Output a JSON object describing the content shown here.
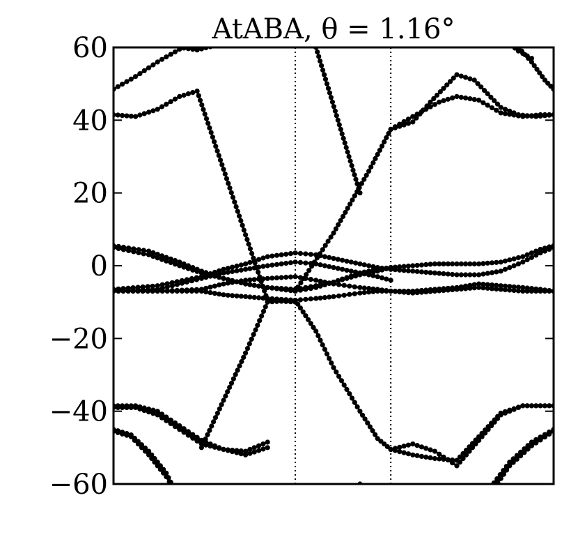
{
  "chart_data": {
    "type": "line",
    "title": "AtABA, θ = 1.16°",
    "xlabel": "",
    "ylabel": "",
    "xlim": [
      0,
      1
    ],
    "ylim": [
      -60,
      60
    ],
    "yticks": [
      -60,
      -40,
      -20,
      0,
      20,
      40,
      60
    ],
    "ytick_labels": [
      "−60",
      "−40",
      "−20",
      "0",
      "20",
      "40",
      "60"
    ],
    "vlines_dotted": [
      0,
      0.413,
      0.63,
      1
    ],
    "grid": false,
    "legend": "none",
    "marker": "dot",
    "line_color": "#000000",
    "series": [
      {
        "x": [
          0,
          0.05,
          0.1,
          0.15,
          0.2,
          0.25,
          0.3
        ],
        "y": [
          48.5,
          52,
          56,
          59.5,
          63,
          66,
          70
        ]
      },
      {
        "x": [
          0,
          0.05,
          0.1,
          0.15,
          0.19,
          0.25,
          0.3,
          0.35,
          0.413
        ],
        "y": [
          41.5,
          41,
          43,
          46.5,
          48,
          26.5,
          8.5,
          -9.5,
          -10
        ]
      },
      {
        "x": [
          0.15,
          0.19,
          0.23
        ],
        "y": [
          60,
          59.3,
          60.5
        ]
      },
      {
        "x": [
          0.413,
          0.5,
          0.58,
          0.63,
          0.68,
          0.72,
          0.78,
          0.82,
          0.88,
          0.92,
          0.96,
          1.0
        ],
        "y": [
          -7,
          9,
          26,
          37.5,
          39.5,
          45,
          52.5,
          51,
          43.5,
          41.5,
          41,
          41.5
        ]
      },
      {
        "x": [
          0.63,
          0.68,
          0.74,
          0.78,
          0.83,
          0.88,
          0.93,
          0.97,
          1.0
        ],
        "y": [
          37.5,
          41,
          45,
          46.5,
          45.5,
          42,
          41,
          41.5,
          41.5
        ]
      },
      {
        "x": [
          0.3,
          0.35,
          0.413,
          0.46,
          0.51,
          0.56
        ],
        "y": [
          70,
          66,
          64,
          60,
          40,
          20
        ]
      },
      {
        "x": [
          0.92,
          0.95,
          0.98,
          1.0
        ],
        "y": [
          60,
          56,
          51,
          48.5
        ]
      },
      {
        "x": [
          0.88,
          0.92,
          0.95
        ],
        "y": [
          63,
          59,
          57
        ]
      },
      {
        "x": [
          0,
          0.08,
          0.15,
          0.2,
          0.25,
          0.3,
          0.35,
          0.413,
          0.46,
          0.5,
          0.56,
          0.6,
          0.63
        ],
        "y": [
          5.5,
          4,
          1,
          -1.5,
          -3.5,
          -5,
          -6,
          -6.5,
          -5.5,
          -4.5,
          -2.5,
          -1.5,
          -0.5
        ]
      },
      {
        "x": [
          0,
          0.08,
          0.15,
          0.2,
          0.25,
          0.3,
          0.35,
          0.413,
          0.46,
          0.5,
          0.56,
          0.6,
          0.63
        ],
        "y": [
          5,
          3,
          0,
          -2,
          -3.5,
          -5,
          -6,
          -7,
          -6,
          -4.5,
          -2,
          -1,
          -0.5
        ]
      },
      {
        "x": [
          0,
          0.1,
          0.2,
          0.25,
          0.3,
          0.35,
          0.413,
          0.46,
          0.5,
          0.56,
          0.6,
          0.63
        ],
        "y": [
          -6.5,
          -5.5,
          -3,
          -1,
          0.5,
          2.5,
          3.5,
          3,
          2,
          0.5,
          -0.5,
          -1
        ]
      },
      {
        "x": [
          0,
          0.1,
          0.2,
          0.25,
          0.3,
          0.35,
          0.413,
          0.46,
          0.5,
          0.56,
          0.6,
          0.63
        ],
        "y": [
          -7,
          -6.5,
          -3.5,
          -2,
          -1,
          0,
          1,
          0.5,
          -0.5,
          -2,
          -3,
          -4
        ]
      },
      {
        "x": [
          0,
          0.1,
          0.2,
          0.25,
          0.3,
          0.35,
          0.413,
          0.46,
          0.5,
          0.56,
          0.6,
          0.63
        ],
        "y": [
          -7,
          -7,
          -6.5,
          -5,
          -4,
          -3.5,
          -3,
          -4,
          -5,
          -6,
          -6.5,
          -7
        ]
      },
      {
        "x": [
          0,
          0.1,
          0.2,
          0.25,
          0.3,
          0.35,
          0.413,
          0.46,
          0.5,
          0.56,
          0.6,
          0.63
        ],
        "y": [
          -7,
          -7,
          -7,
          -8,
          -8.5,
          -9,
          -9.5,
          -9,
          -8.5,
          -7.5,
          -7,
          -7
        ]
      },
      {
        "x": [
          0.63,
          0.68,
          0.73,
          0.78,
          0.83,
          0.88,
          0.93,
          0.97,
          1.0
        ],
        "y": [
          -0.5,
          0,
          0.5,
          0.5,
          0.5,
          1,
          2.5,
          4.5,
          5.5
        ]
      },
      {
        "x": [
          0.63,
          0.68,
          0.73,
          0.78,
          0.83,
          0.88,
          0.93,
          0.97,
          1.0
        ],
        "y": [
          -1,
          -1.5,
          -2,
          -2.5,
          -2.5,
          -1.5,
          1,
          3.5,
          5
        ]
      },
      {
        "x": [
          0.63,
          0.68,
          0.73,
          0.78,
          0.83,
          0.88,
          0.93,
          0.97,
          1.0
        ],
        "y": [
          -7,
          -7,
          -6.5,
          -6,
          -5,
          -5.5,
          -6,
          -6.5,
          -7
        ]
      },
      {
        "x": [
          0.63,
          0.68,
          0.73,
          0.78,
          0.83,
          0.88,
          0.93,
          0.97,
          1.0
        ],
        "y": [
          -7,
          -7.5,
          -7,
          -6.5,
          -6,
          -6.5,
          -7,
          -7,
          -7
        ]
      },
      {
        "x": [
          0,
          0.05,
          0.1,
          0.15,
          0.2,
          0.25,
          0.3,
          0.35
        ],
        "y": [
          -38.5,
          -38.5,
          -40,
          -44,
          -48,
          -50.5,
          -52,
          -50
        ]
      },
      {
        "x": [
          0,
          0.05,
          0.1,
          0.15,
          0.2,
          0.25,
          0.3,
          0.35
        ],
        "y": [
          -39,
          -39,
          -41,
          -45,
          -49,
          -50.5,
          -51,
          -48.5
        ]
      },
      {
        "x": [
          0.2,
          0.25,
          0.3,
          0.35,
          0.413
        ],
        "y": [
          -50,
          -37,
          -24,
          -10,
          -9.5
        ]
      },
      {
        "x": [
          0.413,
          0.46,
          0.5,
          0.56,
          0.6,
          0.63
        ],
        "y": [
          -9.5,
          -18,
          -28,
          -40,
          -47.5,
          -50.5
        ]
      },
      {
        "x": [
          0.63,
          0.68,
          0.73,
          0.78,
          0.83,
          0.88,
          0.93,
          0.97,
          1.0
        ],
        "y": [
          -50.5,
          -49,
          -51,
          -55,
          -48,
          -41,
          -38.5,
          -38.5,
          -38.5
        ]
      },
      {
        "x": [
          0.63,
          0.68,
          0.73,
          0.78,
          0.83,
          0.88,
          0.93,
          0.97,
          1.0
        ],
        "y": [
          -50.5,
          -52,
          -53,
          -53.5,
          -47,
          -40.5,
          -38.5,
          -38.5,
          -38.5
        ]
      },
      {
        "x": [
          0,
          0.04,
          0.08,
          0.12,
          0.14
        ],
        "y": [
          -45,
          -46.5,
          -51,
          -57,
          -62
        ]
      },
      {
        "x": [
          0,
          0.04,
          0.08,
          0.12,
          0.14
        ],
        "y": [
          -45.5,
          -47,
          -52,
          -58,
          -62
        ]
      },
      {
        "x": [
          0.35,
          0.413,
          0.5,
          0.56
        ],
        "y": [
          -63,
          -64,
          -64,
          -60
        ]
      },
      {
        "x": [
          0.85,
          0.9,
          0.95,
          1.0
        ],
        "y": [
          -62,
          -54,
          -48.5,
          -45
        ]
      },
      {
        "x": [
          0.86,
          0.9,
          0.95,
          1.0
        ],
        "y": [
          -62,
          -55,
          -49.5,
          -45.5
        ]
      }
    ]
  }
}
